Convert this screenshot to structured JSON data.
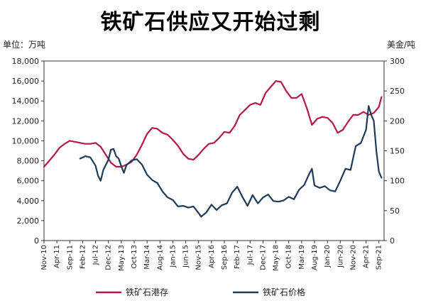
{
  "chart_data": {
    "type": "line",
    "title": "铁矿石供应又开始过剩",
    "left_axis": {
      "unit_label": "单位：万吨",
      "ylim": [
        0,
        18000
      ],
      "ticks": [
        "0",
        "2,000",
        "4,000",
        "6,000",
        "8,000",
        "10,000",
        "12,000",
        "14,000",
        "16,000",
        "18,000"
      ],
      "tick_values": [
        0,
        2000,
        4000,
        6000,
        8000,
        10000,
        12000,
        14000,
        16000,
        18000
      ]
    },
    "right_axis": {
      "unit_label": "美金/吨",
      "ylim": [
        0,
        300
      ],
      "ticks": [
        "0",
        "50",
        "100",
        "150",
        "200",
        "250",
        "300"
      ],
      "tick_values": [
        0,
        50,
        100,
        150,
        200,
        250,
        300
      ]
    },
    "x_axis": {
      "range": [
        "2010-11",
        "2021-11"
      ],
      "tick_labels": [
        "Nov-10",
        "Apr-11",
        "Sep-11",
        "Feb-12",
        "Jul-12",
        "Dec-12",
        "May-13",
        "Oct-13",
        "Mar-14",
        "Aug-14",
        "Jan-15",
        "Jun-15",
        "Nov-15",
        "Apr-16",
        "Sep-16",
        "Feb-17",
        "Jul-17",
        "Dec-17",
        "May-18",
        "Oct-18",
        "Mar-19",
        "Aug-19",
        "Jan-20",
        "Jun-20",
        "Nov-20",
        "Apr-21",
        "Sep-21"
      ]
    },
    "grid": false,
    "legend_position": "bottom",
    "series": [
      {
        "name": "铁矿石港存",
        "axis": "left",
        "color": "#b5174e",
        "points": [
          [
            "2010-11",
            7400
          ],
          [
            "2011-01",
            8000
          ],
          [
            "2011-03",
            8600
          ],
          [
            "2011-05",
            9300
          ],
          [
            "2011-07",
            9700
          ],
          [
            "2011-09",
            10000
          ],
          [
            "2011-11",
            9900
          ],
          [
            "2012-01",
            9800
          ],
          [
            "2012-03",
            9700
          ],
          [
            "2012-05",
            9700
          ],
          [
            "2012-07",
            9800
          ],
          [
            "2012-09",
            9400
          ],
          [
            "2012-11",
            8600
          ],
          [
            "2013-01",
            7800
          ],
          [
            "2013-03",
            7400
          ],
          [
            "2013-05",
            7400
          ],
          [
            "2013-07",
            7600
          ],
          [
            "2013-09",
            7900
          ],
          [
            "2013-11",
            8600
          ],
          [
            "2014-01",
            9600
          ],
          [
            "2014-03",
            10700
          ],
          [
            "2014-05",
            11300
          ],
          [
            "2014-07",
            11200
          ],
          [
            "2014-09",
            10800
          ],
          [
            "2014-11",
            10600
          ],
          [
            "2015-01",
            10100
          ],
          [
            "2015-03",
            9500
          ],
          [
            "2015-05",
            8700
          ],
          [
            "2015-07",
            8200
          ],
          [
            "2015-09",
            8100
          ],
          [
            "2015-11",
            8600
          ],
          [
            "2016-01",
            9200
          ],
          [
            "2016-03",
            9700
          ],
          [
            "2016-05",
            9800
          ],
          [
            "2016-07",
            10300
          ],
          [
            "2016-09",
            10900
          ],
          [
            "2016-11",
            10800
          ],
          [
            "2017-01",
            11500
          ],
          [
            "2017-03",
            12600
          ],
          [
            "2017-05",
            13100
          ],
          [
            "2017-07",
            13600
          ],
          [
            "2017-09",
            13800
          ],
          [
            "2017-11",
            13600
          ],
          [
            "2018-01",
            14800
          ],
          [
            "2018-03",
            15400
          ],
          [
            "2018-05",
            16000
          ],
          [
            "2018-07",
            15900
          ],
          [
            "2018-09",
            15000
          ],
          [
            "2018-11",
            14300
          ],
          [
            "2019-01",
            14300
          ],
          [
            "2019-03",
            14700
          ],
          [
            "2019-05",
            13300
          ],
          [
            "2019-07",
            11600
          ],
          [
            "2019-09",
            12200
          ],
          [
            "2019-11",
            12400
          ],
          [
            "2020-01",
            12300
          ],
          [
            "2020-03",
            11800
          ],
          [
            "2020-05",
            10800
          ],
          [
            "2020-07",
            11100
          ],
          [
            "2020-09",
            11900
          ],
          [
            "2020-11",
            12600
          ],
          [
            "2021-01",
            12600
          ],
          [
            "2021-03",
            12900
          ],
          [
            "2021-05",
            12600
          ],
          [
            "2021-07",
            12800
          ],
          [
            "2021-09",
            13400
          ],
          [
            "2021-10",
            14400
          ]
        ]
      },
      {
        "name": "铁矿石价格",
        "axis": "right",
        "color": "#1f3b5a",
        "points": [
          [
            "2012-01",
            137
          ],
          [
            "2012-03",
            141
          ],
          [
            "2012-05",
            139
          ],
          [
            "2012-07",
            125
          ],
          [
            "2012-08",
            108
          ],
          [
            "2012-09",
            100
          ],
          [
            "2012-10",
            118
          ],
          [
            "2012-12",
            135
          ],
          [
            "2013-01",
            152
          ],
          [
            "2013-02",
            153
          ],
          [
            "2013-03",
            141
          ],
          [
            "2013-04",
            137
          ],
          [
            "2013-05",
            124
          ],
          [
            "2013-06",
            113
          ],
          [
            "2013-07",
            126
          ],
          [
            "2013-09",
            134
          ],
          [
            "2013-11",
            136
          ],
          [
            "2014-01",
            127
          ],
          [
            "2014-03",
            110
          ],
          [
            "2014-05",
            101
          ],
          [
            "2014-07",
            96
          ],
          [
            "2014-09",
            82
          ],
          [
            "2014-11",
            72
          ],
          [
            "2015-01",
            68
          ],
          [
            "2015-03",
            57
          ],
          [
            "2015-05",
            58
          ],
          [
            "2015-07",
            55
          ],
          [
            "2015-09",
            57
          ],
          [
            "2015-11",
            46
          ],
          [
            "2015-12",
            40
          ],
          [
            "2016-02",
            47
          ],
          [
            "2016-04",
            60
          ],
          [
            "2016-06",
            51
          ],
          [
            "2016-08",
            59
          ],
          [
            "2016-10",
            62
          ],
          [
            "2016-12",
            80
          ],
          [
            "2017-02",
            90
          ],
          [
            "2017-04",
            73
          ],
          [
            "2017-06",
            58
          ],
          [
            "2017-08",
            76
          ],
          [
            "2017-10",
            62
          ],
          [
            "2017-12",
            72
          ],
          [
            "2018-02",
            77
          ],
          [
            "2018-04",
            66
          ],
          [
            "2018-06",
            65
          ],
          [
            "2018-08",
            67
          ],
          [
            "2018-10",
            73
          ],
          [
            "2018-12",
            69
          ],
          [
            "2019-02",
            85
          ],
          [
            "2019-04",
            93
          ],
          [
            "2019-06",
            112
          ],
          [
            "2019-07",
            120
          ],
          [
            "2019-08",
            92
          ],
          [
            "2019-10",
            88
          ],
          [
            "2019-12",
            91
          ],
          [
            "2020-02",
            84
          ],
          [
            "2020-04",
            82
          ],
          [
            "2020-06",
            100
          ],
          [
            "2020-08",
            120
          ],
          [
            "2020-10",
            118
          ],
          [
            "2020-12",
            158
          ],
          [
            "2021-02",
            163
          ],
          [
            "2021-04",
            185
          ],
          [
            "2021-05",
            225
          ],
          [
            "2021-06",
            210
          ],
          [
            "2021-07",
            200
          ],
          [
            "2021-08",
            150
          ],
          [
            "2021-09",
            115
          ],
          [
            "2021-10",
            105
          ]
        ]
      }
    ]
  }
}
